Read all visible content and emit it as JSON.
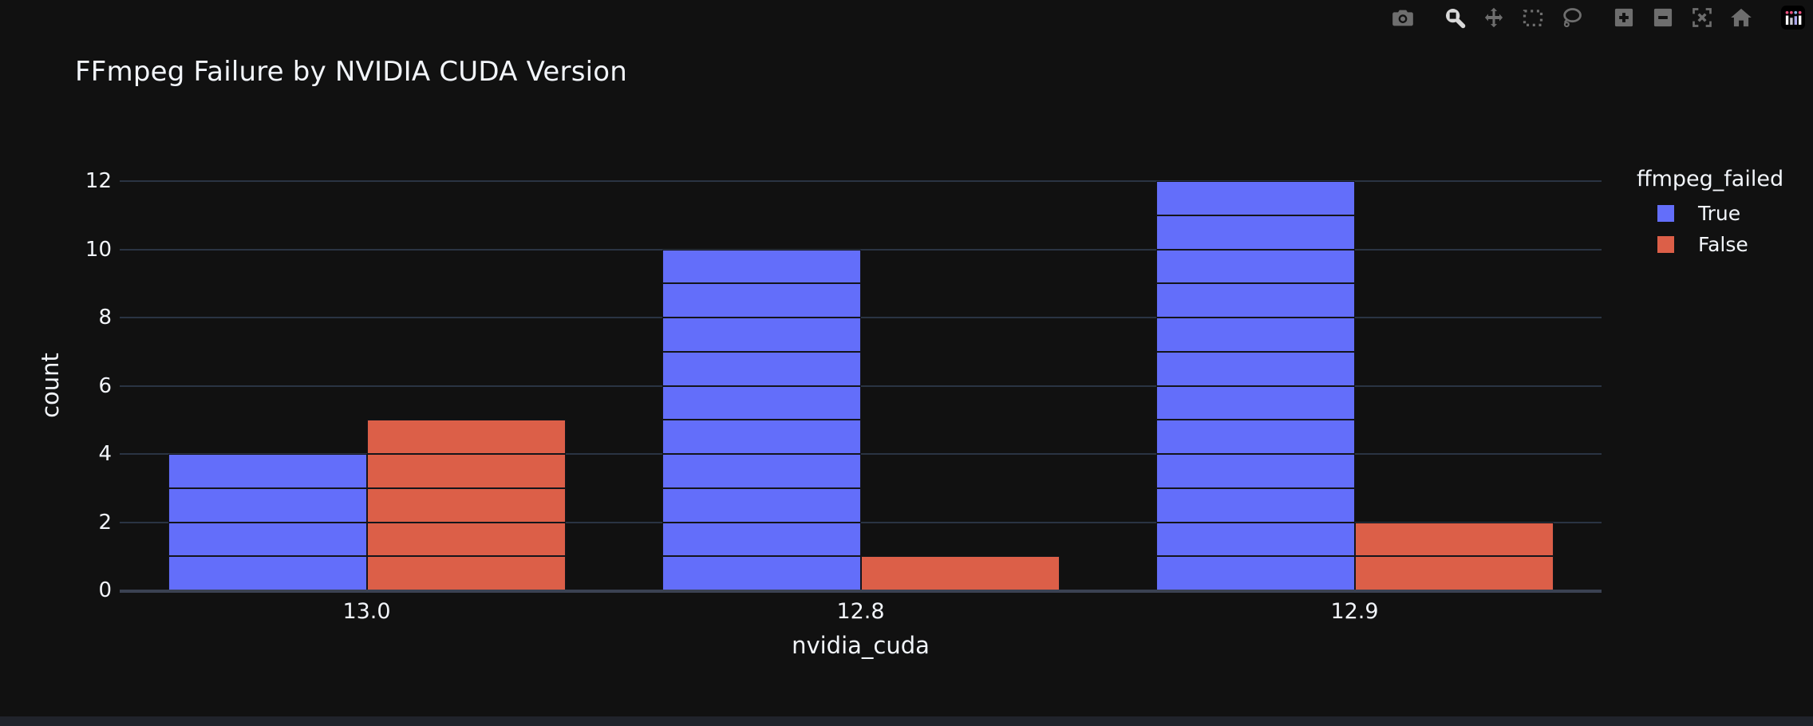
{
  "window": {
    "background": "#111111",
    "bottom_strip_color": "#20232b"
  },
  "modebar": {
    "icon_color": "#6e6e6e",
    "active_icon_color": "#d9d9d9",
    "buttons": [
      {
        "name": "camera",
        "active": false,
        "group_start": false
      },
      {
        "name": "zoom",
        "active": true,
        "group_start": true
      },
      {
        "name": "pan",
        "active": false,
        "group_start": false
      },
      {
        "name": "box-select",
        "active": false,
        "group_start": false
      },
      {
        "name": "lasso-select",
        "active": false,
        "group_start": false
      },
      {
        "name": "zoom-in",
        "active": false,
        "group_start": true
      },
      {
        "name": "zoom-out",
        "active": false,
        "group_start": false
      },
      {
        "name": "autoscale",
        "active": false,
        "group_start": false
      },
      {
        "name": "reset-axes-home",
        "active": false,
        "group_start": false
      },
      {
        "name": "plotly-logo",
        "active": false,
        "group_start": true
      }
    ]
  },
  "chart_data": {
    "type": "bar",
    "title": "FFmpeg Failure by NVIDIA CUDA Version",
    "xlabel": "nvidia_cuda",
    "ylabel": "count",
    "categories": [
      "13.0",
      "12.8",
      "12.9"
    ],
    "series": [
      {
        "name": "True",
        "color": "#636EFA",
        "values": [
          4,
          10,
          12
        ]
      },
      {
        "name": "False",
        "color": "#DC5F48",
        "values": [
          5,
          1,
          2
        ]
      }
    ],
    "legend_title": "ffmpeg_failed",
    "legend_position": "right",
    "yticks": [
      0,
      2,
      4,
      6,
      8,
      10,
      12
    ],
    "ylim": [
      0,
      12.6
    ],
    "grid": true,
    "bar_style": "grouped bars built from unit-high outlined segments (one block per counted record)",
    "colors": {
      "background": "#111111",
      "grid": "#2a3443",
      "zeroline": "#3b4252",
      "text": "#f2f5fa",
      "segment_outline": "#14151b"
    }
  }
}
